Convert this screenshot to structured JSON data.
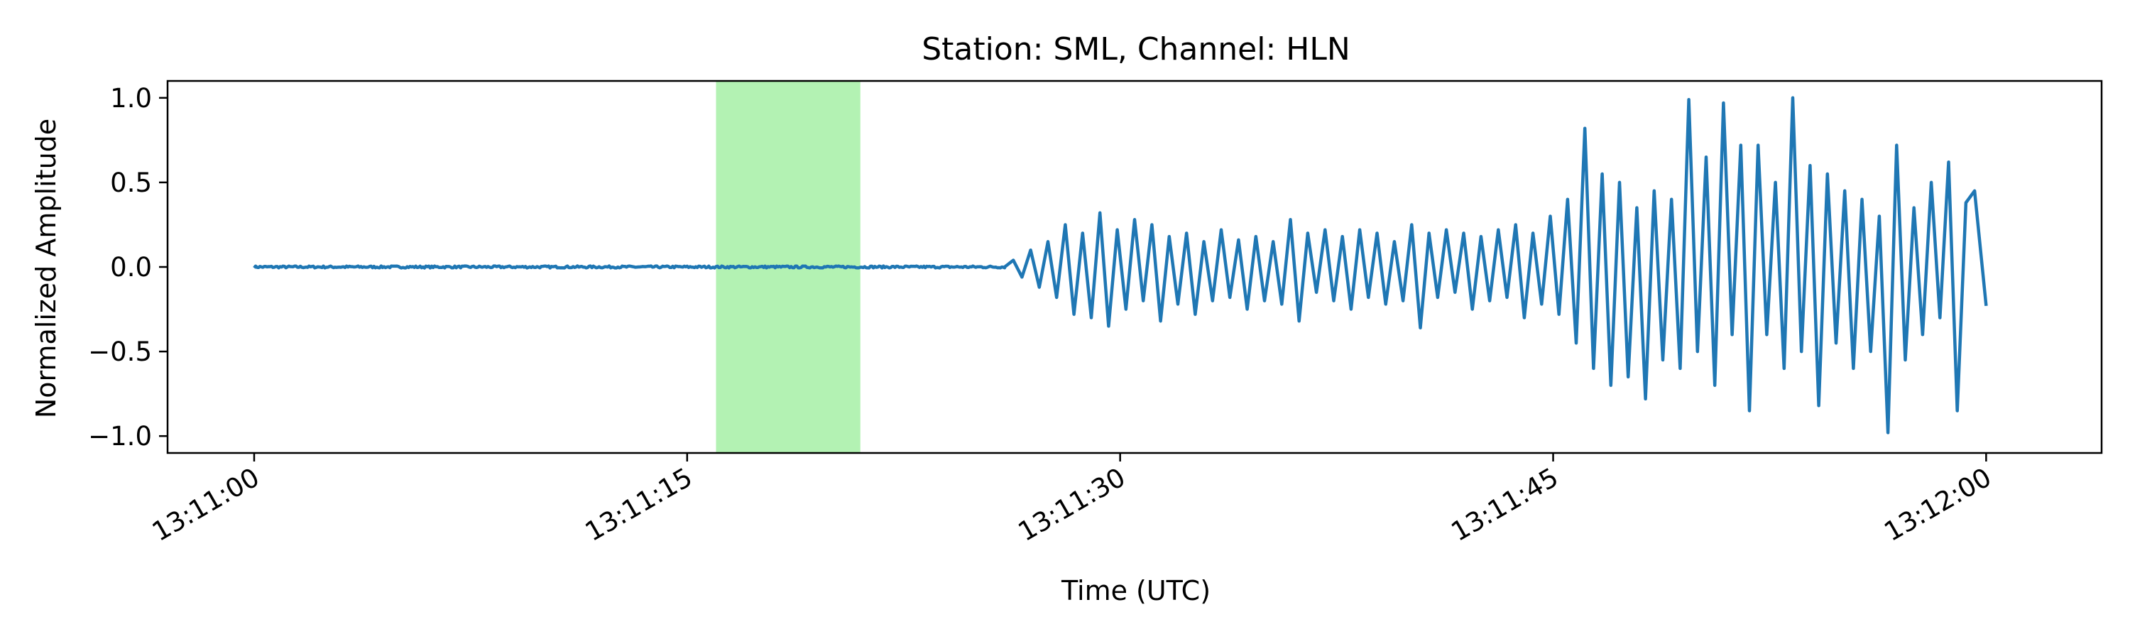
{
  "chart_data": {
    "type": "line",
    "title": "Station: SML, Channel: HLN",
    "xlabel": "Time (UTC)",
    "ylabel": "Normalized Amplitude",
    "x_range_seconds_after_13_11_00": [
      -3,
      64
    ],
    "x_ticks": [
      {
        "t": 0,
        "label": "13:11:00"
      },
      {
        "t": 15,
        "label": "13:11:15"
      },
      {
        "t": 30,
        "label": "13:11:30"
      },
      {
        "t": 45,
        "label": "13:11:45"
      },
      {
        "t": 60,
        "label": "13:12:00"
      }
    ],
    "ylim": [
      -1.1,
      1.1
    ],
    "y_ticks": [
      {
        "v": 1.0,
        "label": "1.0"
      },
      {
        "v": 0.5,
        "label": "0.5"
      },
      {
        "v": 0.0,
        "label": "0.0"
      },
      {
        "v": -0.5,
        "label": "−0.5"
      },
      {
        "v": -1.0,
        "label": "−1.0"
      }
    ],
    "highlight_window": {
      "start": 16.0,
      "end": 21.0,
      "color": "#b3f2b3"
    },
    "series": [
      {
        "color": "#1f77b4",
        "x_start": 0,
        "x_end": 60,
        "quiet_until": 26.0,
        "points": [
          [
            26.0,
            0.0
          ],
          [
            26.3,
            0.04
          ],
          [
            26.6,
            -0.06
          ],
          [
            26.9,
            0.1
          ],
          [
            27.2,
            -0.12
          ],
          [
            27.5,
            0.15
          ],
          [
            27.8,
            -0.18
          ],
          [
            28.1,
            0.25
          ],
          [
            28.4,
            -0.28
          ],
          [
            28.7,
            0.2
          ],
          [
            29.0,
            -0.3
          ],
          [
            29.3,
            0.32
          ],
          [
            29.6,
            -0.35
          ],
          [
            29.9,
            0.22
          ],
          [
            30.2,
            -0.25
          ],
          [
            30.5,
            0.28
          ],
          [
            30.8,
            -0.2
          ],
          [
            31.1,
            0.25
          ],
          [
            31.4,
            -0.32
          ],
          [
            31.7,
            0.18
          ],
          [
            32.0,
            -0.22
          ],
          [
            32.3,
            0.2
          ],
          [
            32.6,
            -0.28
          ],
          [
            32.9,
            0.15
          ],
          [
            33.2,
            -0.2
          ],
          [
            33.5,
            0.22
          ],
          [
            33.8,
            -0.18
          ],
          [
            34.1,
            0.16
          ],
          [
            34.4,
            -0.25
          ],
          [
            34.7,
            0.18
          ],
          [
            35.0,
            -0.2
          ],
          [
            35.3,
            0.15
          ],
          [
            35.6,
            -0.22
          ],
          [
            35.9,
            0.28
          ],
          [
            36.2,
            -0.32
          ],
          [
            36.5,
            0.2
          ],
          [
            36.8,
            -0.15
          ],
          [
            37.1,
            0.22
          ],
          [
            37.4,
            -0.2
          ],
          [
            37.7,
            0.18
          ],
          [
            38.0,
            -0.25
          ],
          [
            38.3,
            0.22
          ],
          [
            38.6,
            -0.18
          ],
          [
            38.9,
            0.2
          ],
          [
            39.2,
            -0.22
          ],
          [
            39.5,
            0.15
          ],
          [
            39.8,
            -0.2
          ],
          [
            40.1,
            0.25
          ],
          [
            40.4,
            -0.36
          ],
          [
            40.7,
            0.2
          ],
          [
            41.0,
            -0.18
          ],
          [
            41.3,
            0.22
          ],
          [
            41.6,
            -0.15
          ],
          [
            41.9,
            0.2
          ],
          [
            42.2,
            -0.25
          ],
          [
            42.5,
            0.18
          ],
          [
            42.8,
            -0.2
          ],
          [
            43.1,
            0.22
          ],
          [
            43.4,
            -0.18
          ],
          [
            43.7,
            0.25
          ],
          [
            44.0,
            -0.3
          ],
          [
            44.3,
            0.2
          ],
          [
            44.6,
            -0.22
          ],
          [
            44.9,
            0.3
          ],
          [
            45.2,
            -0.28
          ],
          [
            45.5,
            0.4
          ],
          [
            45.8,
            -0.45
          ],
          [
            46.1,
            0.82
          ],
          [
            46.4,
            -0.6
          ],
          [
            46.7,
            0.55
          ],
          [
            47.0,
            -0.7
          ],
          [
            47.3,
            0.5
          ],
          [
            47.6,
            -0.65
          ],
          [
            47.9,
            0.35
          ],
          [
            48.2,
            -0.78
          ],
          [
            48.5,
            0.45
          ],
          [
            48.8,
            -0.55
          ],
          [
            49.1,
            0.4
          ],
          [
            49.4,
            -0.6
          ],
          [
            49.7,
            0.99
          ],
          [
            50.0,
            -0.5
          ],
          [
            50.3,
            0.65
          ],
          [
            50.6,
            -0.7
          ],
          [
            50.9,
            0.97
          ],
          [
            51.2,
            -0.4
          ],
          [
            51.5,
            0.72
          ],
          [
            51.8,
            -0.85
          ],
          [
            52.1,
            0.72
          ],
          [
            52.4,
            -0.4
          ],
          [
            52.7,
            0.5
          ],
          [
            53.0,
            -0.6
          ],
          [
            53.3,
            1.0
          ],
          [
            53.6,
            -0.5
          ],
          [
            53.9,
            0.6
          ],
          [
            54.2,
            -0.82
          ],
          [
            54.5,
            0.55
          ],
          [
            54.8,
            -0.45
          ],
          [
            55.1,
            0.45
          ],
          [
            55.4,
            -0.6
          ],
          [
            55.7,
            0.4
          ],
          [
            56.0,
            -0.5
          ],
          [
            56.3,
            0.3
          ],
          [
            56.6,
            -0.98
          ],
          [
            56.9,
            0.72
          ],
          [
            57.2,
            -0.55
          ],
          [
            57.5,
            0.35
          ],
          [
            57.8,
            -0.4
          ],
          [
            58.1,
            0.5
          ],
          [
            58.4,
            -0.3
          ],
          [
            58.7,
            0.62
          ],
          [
            59.0,
            -0.85
          ],
          [
            59.3,
            0.38
          ],
          [
            59.6,
            0.45
          ],
          [
            60.0,
            -0.23
          ]
        ]
      }
    ]
  }
}
